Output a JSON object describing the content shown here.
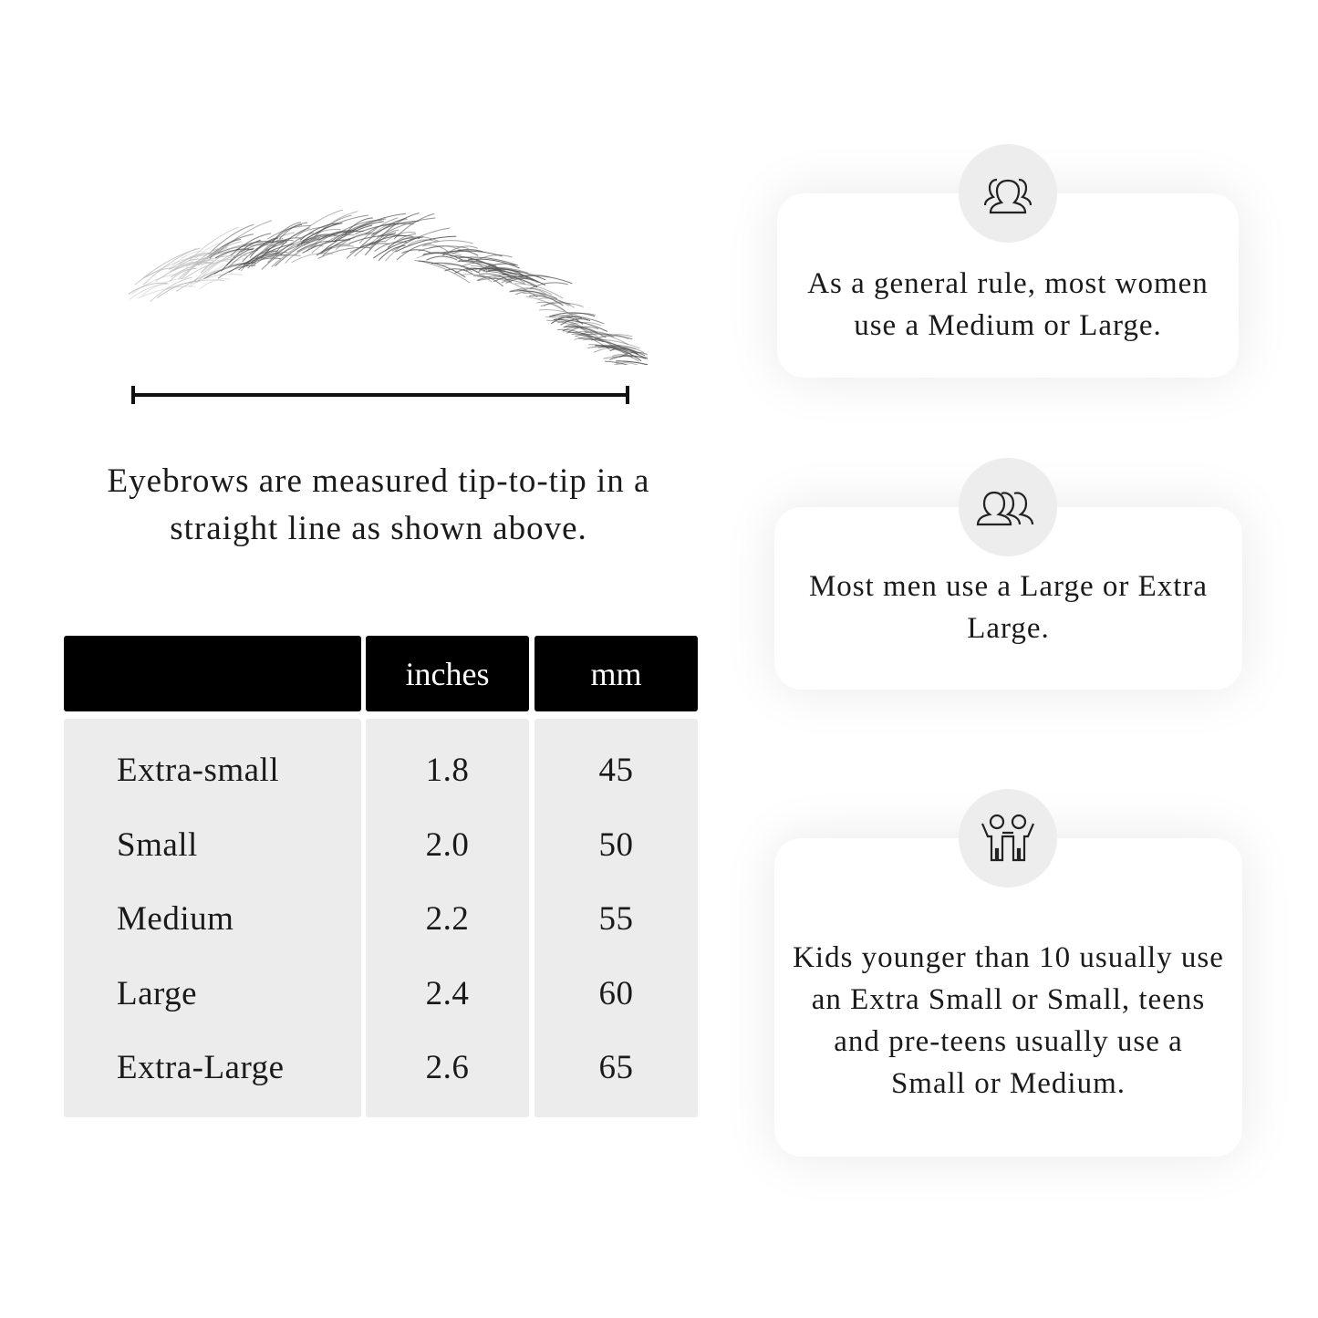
{
  "caption": "Eyebrows are measured tip-to-tip in a straight line as shown above.",
  "table": {
    "headers": [
      "",
      "inches",
      "mm"
    ],
    "rows": [
      {
        "size": "Extra-small",
        "inches": "1.8",
        "mm": "45"
      },
      {
        "size": "Small",
        "inches": "2.0",
        "mm": "50"
      },
      {
        "size": "Medium",
        "inches": "2.2",
        "mm": "55"
      },
      {
        "size": "Large",
        "inches": "2.4",
        "mm": "60"
      },
      {
        "size": "Extra-Large",
        "inches": "2.6",
        "mm": "65"
      }
    ]
  },
  "cards": [
    {
      "icon": "women-group-icon",
      "text": "As a general rule, most women use a Medium or Large."
    },
    {
      "icon": "men-group-icon",
      "text": "Most men use a Large or Extra Large."
    },
    {
      "icon": "kids-icon",
      "text": "Kids younger than 10 usually use an Extra Small or Small, teens and pre-teens usually use a Small or Medium."
    }
  ],
  "colors": {
    "header_bg": "#000000",
    "cell_bg": "#ececec",
    "badge_bg": "#ededed"
  }
}
